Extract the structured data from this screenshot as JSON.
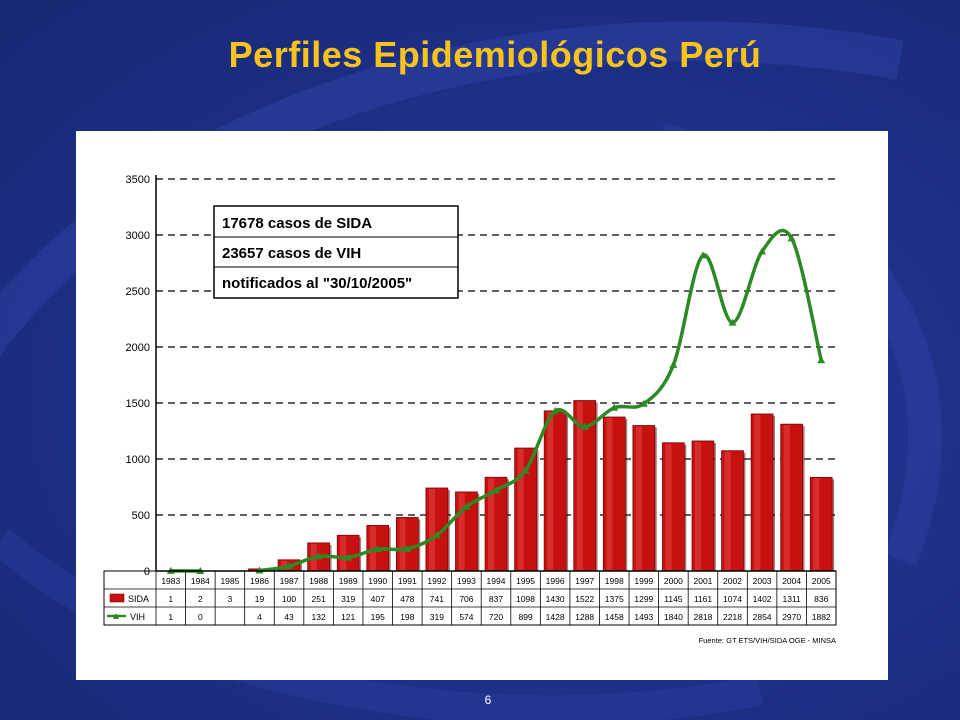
{
  "slide": {
    "title": "Perfiles Epidemiológicos Perú",
    "page_number": "6"
  },
  "colors": {
    "background": "#1d2f86",
    "title": "#f5c31c",
    "sida_bar": "#c81010",
    "vih_line": "#2c8a24",
    "grid": "#000000"
  },
  "chart_data": {
    "type": "bar",
    "categories": [
      "1983",
      "1984",
      "1985",
      "1986",
      "1987",
      "1988",
      "1989",
      "1990",
      "1991",
      "1992",
      "1993",
      "1994",
      "1995",
      "1996",
      "1997",
      "1998",
      "1999",
      "2000",
      "2001",
      "2002",
      "2003",
      "2004",
      "2005"
    ],
    "series": [
      {
        "name": "SIDA",
        "type": "bar",
        "values": [
          1,
          2,
          3,
          19,
          100,
          251,
          319,
          407,
          478,
          741,
          706,
          837,
          1098,
          1430,
          1522,
          1375,
          1299,
          1145,
          1161,
          1074,
          1402,
          1311,
          836
        ]
      },
      {
        "name": "VIH",
        "type": "line",
        "values": [
          1,
          0,
          null,
          4,
          43,
          132,
          121,
          195,
          198,
          319,
          574,
          720,
          899,
          1428,
          1288,
          1458,
          1493,
          1840,
          2818,
          2218,
          2854,
          2970,
          1882
        ]
      }
    ],
    "table_rows": {
      "SIDA": [
        "1",
        "2",
        "3",
        "19",
        "100",
        "251",
        "319",
        "407",
        "478",
        "741",
        "706",
        "837",
        "1098",
        "1430",
        "1522",
        "1375",
        "1299",
        "1145",
        "1161",
        "1074",
        "1402",
        "1311",
        "836"
      ],
      "VIH": [
        "1",
        "0",
        "",
        "4",
        "43",
        "132",
        "121",
        "195",
        "198",
        "319",
        "574",
        "720",
        "899",
        "1428",
        "1288",
        "1458",
        "1493",
        "1840",
        "2818",
        "2218",
        "2854",
        "2970",
        "1882"
      ]
    },
    "y_ticks": [
      "0",
      "500",
      "1000",
      "1500",
      "2000",
      "2500",
      "3000",
      "3500"
    ],
    "ylim": [
      0,
      3500
    ],
    "grid": true,
    "annotation_lines": [
      "17678 casos de SIDA",
      "23657 casos de VIH",
      "notificados al \"30/10/2005\""
    ],
    "source": "Fuente: GT ETS/VIH/SIDA OGE - MINSA"
  }
}
